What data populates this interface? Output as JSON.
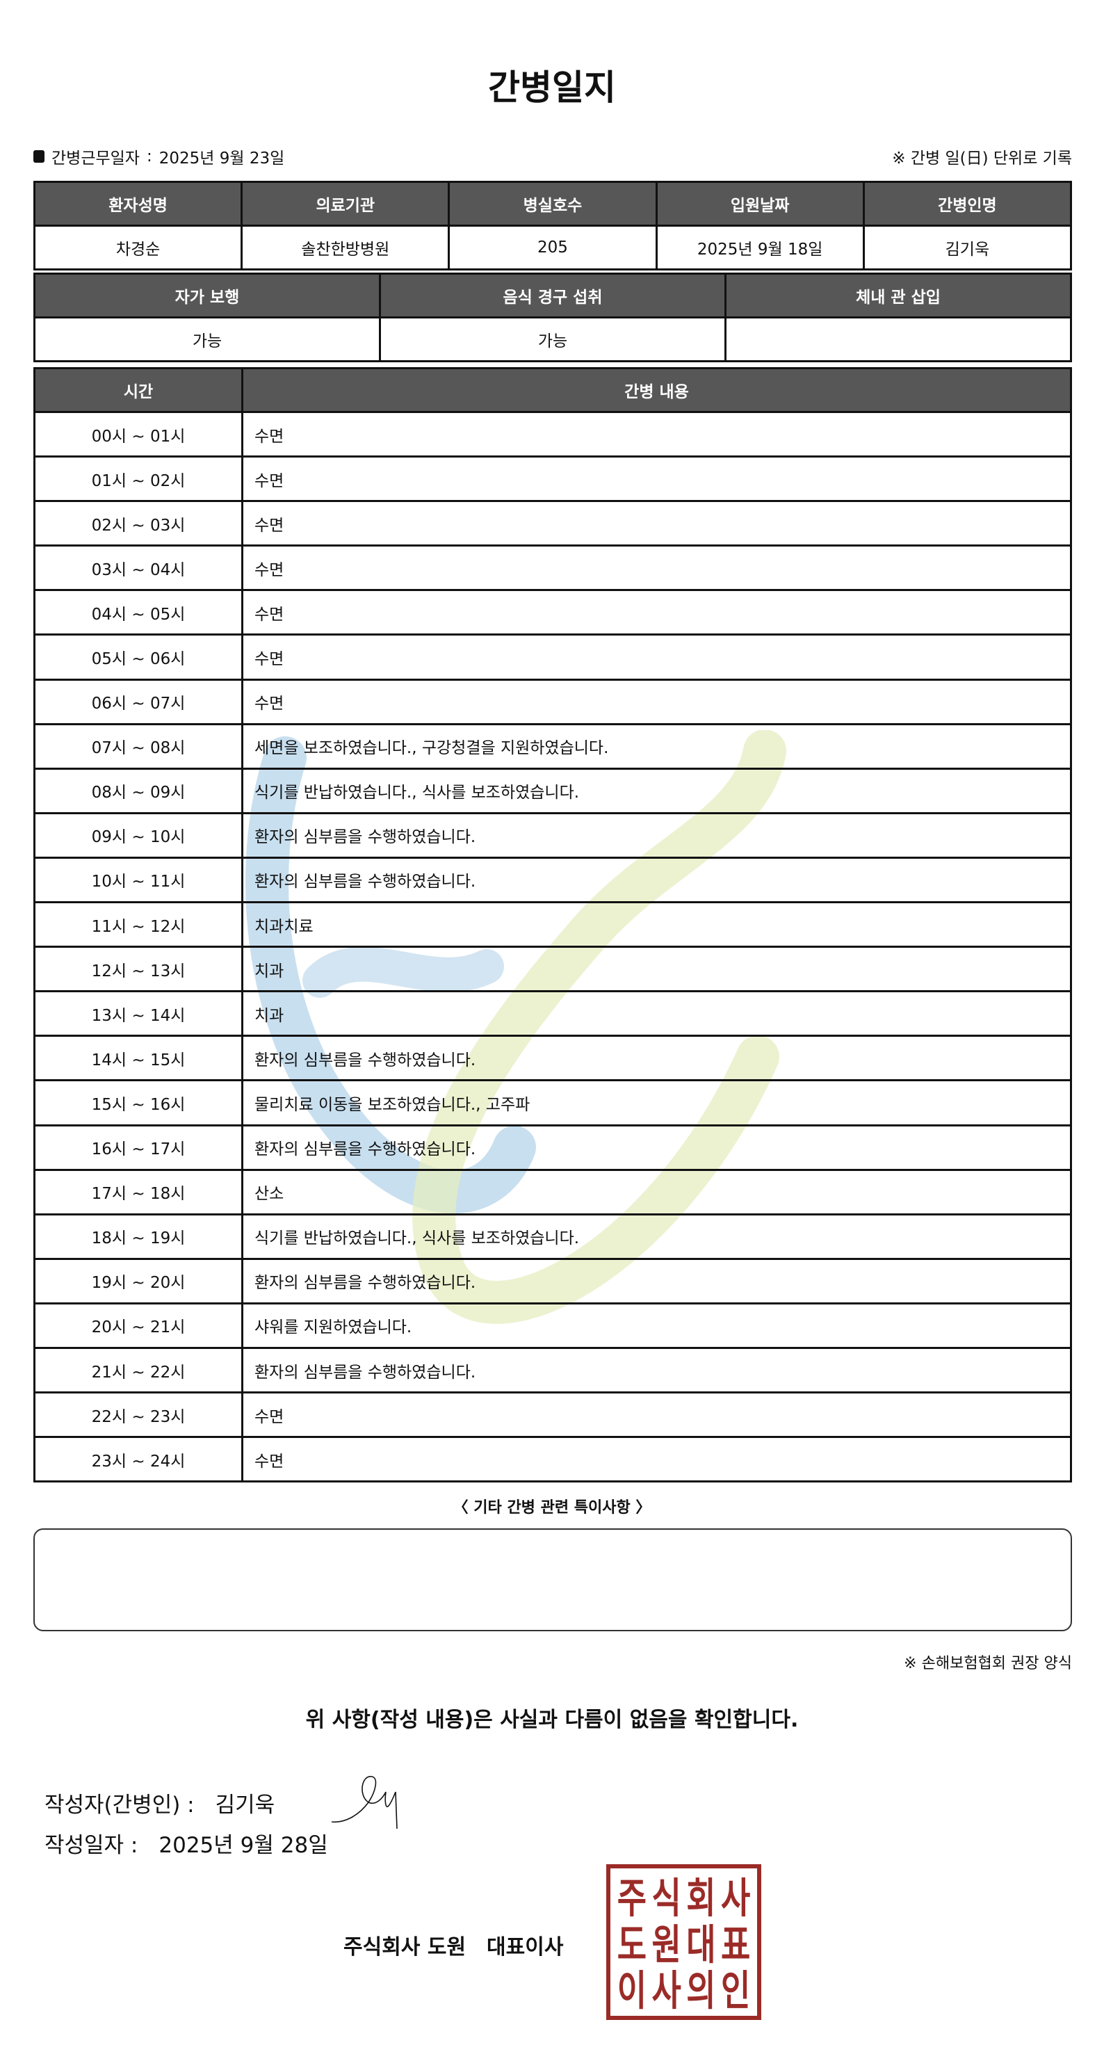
{
  "title": "간병일지",
  "meta": {
    "work_date_label": "간병근무일자",
    "separator": ":",
    "work_date": "2025년 9월 23일",
    "note": "※ 간병 일(日) 단위로 기록"
  },
  "info": {
    "headers": [
      "환자성명",
      "의료기관",
      "병실호수",
      "입원날짜",
      "간병인명"
    ],
    "values": [
      "차경순",
      "솔찬한방병원",
      "205",
      "2025년 9월 18일",
      "김기욱"
    ]
  },
  "status": {
    "headers": [
      "자가 보행",
      "음식 경구 섭취",
      "체내 관 삽입"
    ],
    "values": [
      "가능",
      "가능",
      ""
    ]
  },
  "log": {
    "headers": [
      "시간",
      "간병 내용"
    ],
    "rows": [
      [
        "00시 ~ 01시",
        "수면"
      ],
      [
        "01시 ~ 02시",
        "수면"
      ],
      [
        "02시 ~ 03시",
        "수면"
      ],
      [
        "03시 ~ 04시",
        "수면"
      ],
      [
        "04시 ~ 05시",
        "수면"
      ],
      [
        "05시 ~ 06시",
        "수면"
      ],
      [
        "06시 ~ 07시",
        "수면"
      ],
      [
        "07시 ~ 08시",
        "세면을 보조하였습니다., 구강청결을 지원하였습니다."
      ],
      [
        "08시 ~ 09시",
        "식기를 반납하였습니다., 식사를 보조하였습니다."
      ],
      [
        "09시 ~ 10시",
        "환자의 심부름을 수행하였습니다."
      ],
      [
        "10시 ~ 11시",
        "환자의 심부름을 수행하였습니다."
      ],
      [
        "11시 ~ 12시",
        "치과치료"
      ],
      [
        "12시 ~ 13시",
        "치과"
      ],
      [
        "13시 ~ 14시",
        "치과"
      ],
      [
        "14시 ~ 15시",
        "환자의 심부름을 수행하였습니다."
      ],
      [
        "15시 ~ 16시",
        "물리치료 이동을 보조하였습니다., 고주파"
      ],
      [
        "16시 ~ 17시",
        "환자의 심부름을 수행하였습니다."
      ],
      [
        "17시 ~ 18시",
        "산소"
      ],
      [
        "18시 ~ 19시",
        "식기를 반납하였습니다., 식사를 보조하였습니다."
      ],
      [
        "19시 ~ 20시",
        "환자의 심부름을 수행하였습니다."
      ],
      [
        "20시 ~ 21시",
        "샤워를 지원하였습니다."
      ],
      [
        "21시 ~ 22시",
        "환자의 심부름을 수행하였습니다."
      ],
      [
        "22시 ~ 23시",
        "수면"
      ],
      [
        "23시 ~ 24시",
        "수면"
      ]
    ]
  },
  "notes": {
    "label": "〈 기타 간병 관련 특이사항 〉",
    "value": ""
  },
  "footnote": "※ 손해보험협회 권장 양식",
  "confirm": "위 사항(작성 내용)은 사실과 다름이 없음을 확인합니다.",
  "writer": {
    "label": "작성자(간병인) :",
    "name": "김기욱"
  },
  "written_date": {
    "label": "작성일자 :",
    "value": "2025년 9월 28일"
  },
  "company": {
    "name": "주식회사 도원",
    "role": "대표이사"
  },
  "stamp": {
    "text": "주식회사도원대표이사의인",
    "color": "#9b2b27"
  },
  "colors": {
    "header_bg": "#575757",
    "watermark_blue": "#b5d4ea",
    "watermark_green": "#e6eec0"
  }
}
